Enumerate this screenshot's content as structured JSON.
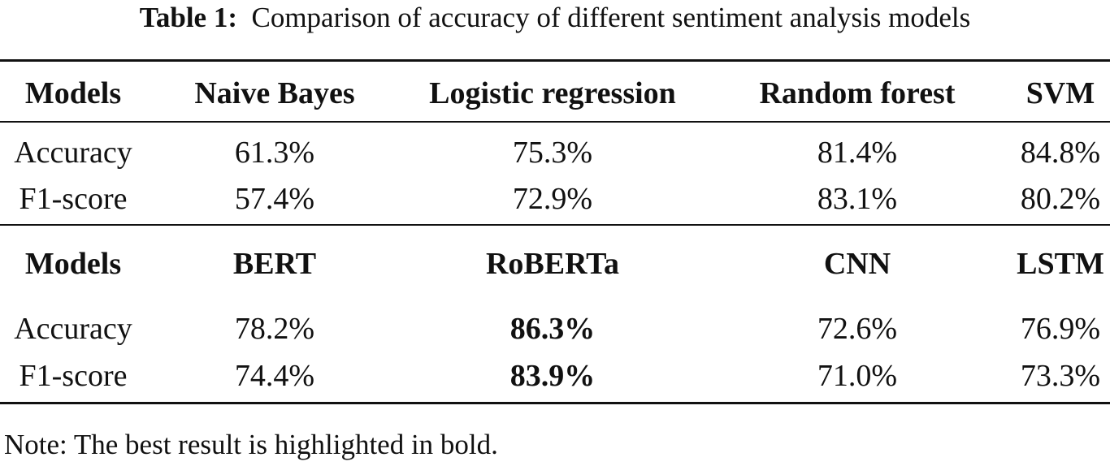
{
  "caption": {
    "label": "Table 1:",
    "text": "Comparison of accuracy of different sentiment analysis models"
  },
  "blocks": [
    {
      "header": [
        "Models",
        "Naive Bayes",
        "Logistic regression",
        "Random forest",
        "SVM"
      ],
      "rows": [
        [
          "Accuracy",
          "61.3%",
          "75.3%",
          "81.4%",
          "84.8%"
        ],
        [
          "F1-score",
          "57.4%",
          "72.9%",
          "83.1%",
          "80.2%"
        ]
      ]
    },
    {
      "header": [
        "Models",
        "BERT",
        "RoBERTa",
        "CNN",
        "LSTM"
      ],
      "rows": [
        [
          "Accuracy",
          "78.2%",
          "86.3%",
          "72.6%",
          "76.9%"
        ],
        [
          "F1-score",
          "74.4%",
          "83.9%",
          "71.0%",
          "73.3%"
        ]
      ]
    }
  ],
  "note": "Note: The best result is highlighted in bold."
}
